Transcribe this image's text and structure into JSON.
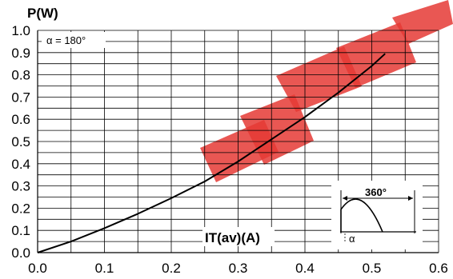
{
  "chart_data": {
    "type": "line",
    "ylabel": "P(W)",
    "xlabel": "IT(av)(A)",
    "annotation": "α = 180°",
    "inset": {
      "period_label": "360°",
      "angle_label": "α"
    },
    "xlim": [
      0.0,
      0.6
    ],
    "ylim": [
      0.0,
      1.0
    ],
    "x_ticks": [
      "0.0",
      "0.1",
      "0.2",
      "0.3",
      "0.4",
      "0.5",
      "0.6"
    ],
    "y_ticks": [
      "0.0",
      "0.1",
      "0.2",
      "0.3",
      "0.4",
      "0.5",
      "0.6",
      "0.7",
      "0.8",
      "0.9",
      "1.0"
    ],
    "grid": true,
    "series": [
      {
        "color": "#000000",
        "x": [
          0.0,
          0.05,
          0.1,
          0.15,
          0.2,
          0.25,
          0.3,
          0.35,
          0.4,
          0.45,
          0.5,
          0.52
        ],
        "y": [
          0.0,
          0.05,
          0.11,
          0.175,
          0.245,
          0.32,
          0.41,
          0.51,
          0.61,
          0.72,
          0.84,
          0.895
        ]
      }
    ],
    "watermark_color": "#e53935"
  }
}
